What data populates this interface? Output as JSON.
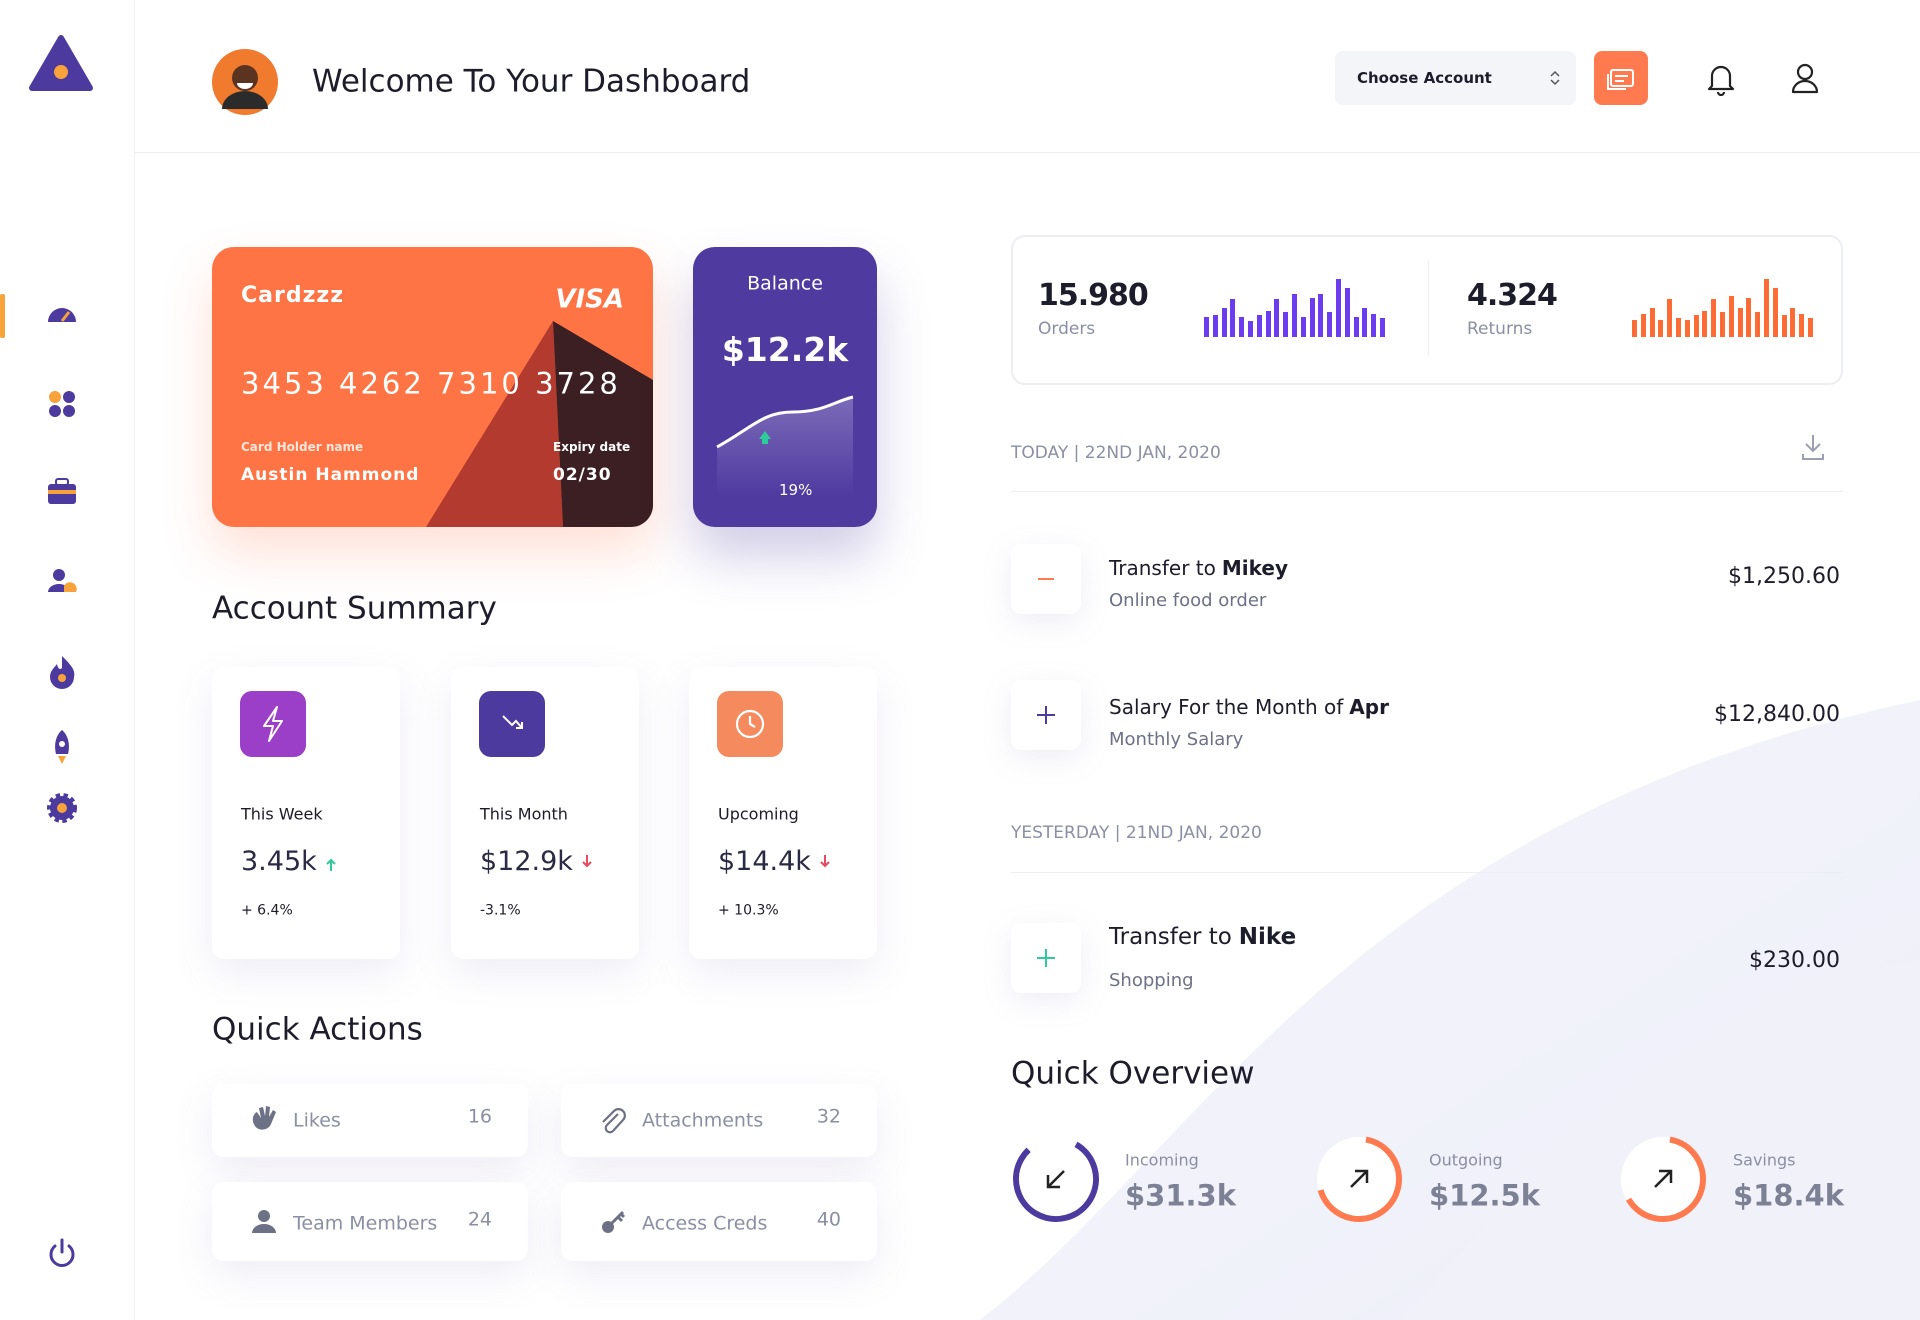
{
  "header": {
    "title": "Welcome To Your Dashboard",
    "account_select": "Choose Account"
  },
  "card": {
    "name": "Cardzzz",
    "network": "VISA",
    "number": "3453 4262 7310 3728",
    "holder_label": "Card Holder name",
    "holder": "Austin Hammond",
    "expiry_label": "Expiry date",
    "expiry": "02/30"
  },
  "balance": {
    "label": "Balance",
    "value": "$12.2k",
    "change": "19%"
  },
  "account_summary": {
    "title": "Account Summary",
    "items": [
      {
        "label": "This Week",
        "value": "3.45k",
        "change": "+ 6.4%",
        "trend": "up",
        "color": "#9b3fc8"
      },
      {
        "label": "This Month",
        "value": "$12.9k",
        "change": "-3.1%",
        "trend": "down",
        "color": "#4d3a9e"
      },
      {
        "label": "Upcoming",
        "value": "$14.4k",
        "change": "+ 10.3%",
        "trend": "down",
        "color": "#f58a5e"
      }
    ]
  },
  "quick_actions": {
    "title": "Quick Actions",
    "items": [
      {
        "label": "Likes",
        "count": 16
      },
      {
        "label": "Attachments",
        "count": 32
      },
      {
        "label": "Team Members",
        "count": 24
      },
      {
        "label": "Access Creds",
        "count": 40
      }
    ]
  },
  "stats": [
    {
      "value": "15.980",
      "label": "Orders",
      "color": "#6c3cf0",
      "bars": [
        14,
        15,
        20,
        26,
        14,
        11,
        15,
        18,
        26,
        17,
        30,
        14,
        27,
        30,
        17,
        40,
        34,
        14,
        20,
        16,
        13
      ]
    },
    {
      "value": "4.324",
      "label": "Returns",
      "color": "#ff6b35",
      "bars": [
        12,
        16,
        20,
        12,
        26,
        13,
        12,
        15,
        18,
        26,
        17,
        28,
        20,
        27,
        17,
        40,
        34,
        15,
        20,
        16,
        13
      ]
    }
  ],
  "transactions": {
    "groups": [
      {
        "date": "TODAY | 22ND JAN, 2020",
        "items": [
          {
            "text": "Transfer to",
            "name": "Mikey",
            "subtitle": "Online food order",
            "amount": "$1,250.60"
          },
          {
            "text": "Salary For the Month of",
            "name": "Apr",
            "subtitle": "Monthly Salary",
            "amount": "$12,840.00"
          }
        ]
      },
      {
        "date": "YESTERDAY | 21ND JAN, 2020",
        "items": [
          {
            "text": "Transfer to",
            "name": "Nike",
            "subtitle": "Shopping",
            "amount": "$230.00"
          }
        ]
      }
    ]
  },
  "quick_overview": {
    "title": "Quick Overview",
    "items": [
      {
        "label": "Incoming",
        "value": "$31.3k"
      },
      {
        "label": "Outgoing",
        "value": "$12.5k"
      },
      {
        "label": "Savings",
        "value": "$18.4k"
      }
    ]
  }
}
